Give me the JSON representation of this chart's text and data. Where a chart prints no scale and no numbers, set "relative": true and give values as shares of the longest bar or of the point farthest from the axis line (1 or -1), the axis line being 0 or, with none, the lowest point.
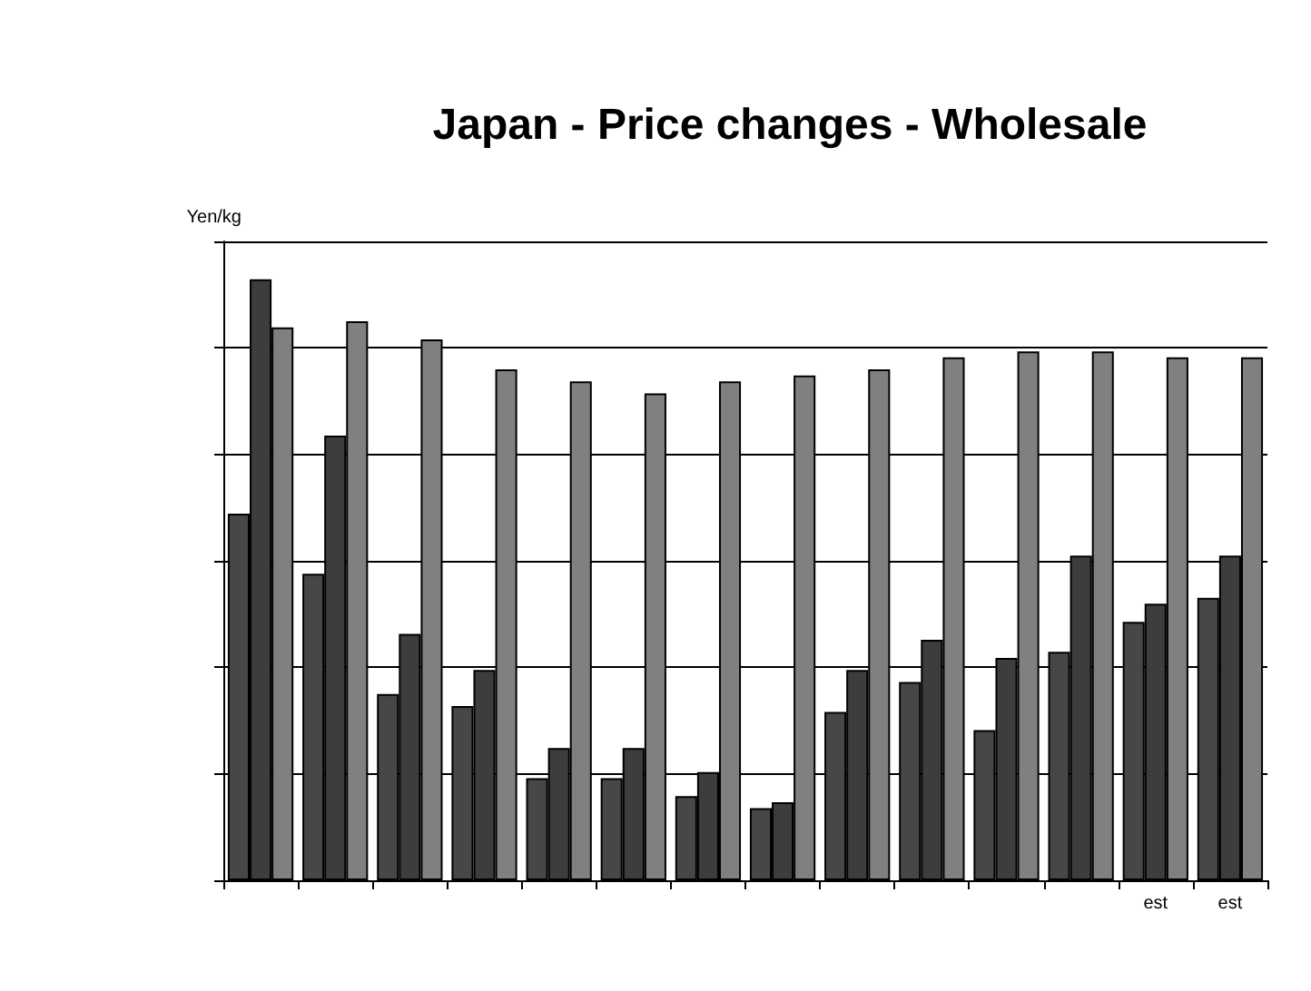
{
  "chart_data": {
    "type": "bar",
    "title": "Japan - Price changes - Wholesale",
    "ylabel": "Yen/kg",
    "relative": true,
    "grid": "y",
    "categories": [
      null,
      null,
      null,
      null,
      null,
      null,
      null,
      null,
      null,
      null,
      null,
      null,
      "est",
      "est"
    ],
    "series": [
      {
        "color": "#474747",
        "values": [
          0.61,
          0.51,
          0.31,
          0.29,
          0.17,
          0.17,
          0.14,
          0.12,
          0.28,
          0.33,
          0.25,
          0.38,
          0.43,
          0.47
        ]
      },
      {
        "color": "#3d3d3d",
        "values": [
          1,
          0.74,
          0.41,
          0.35,
          0.22,
          0.22,
          0.18,
          0.13,
          0.35,
          0.4,
          0.37,
          0.54,
          0.46,
          0.54
        ]
      },
      {
        "color": "#808080",
        "values": [
          0.92,
          0.93,
          0.9,
          0.85,
          0.83,
          0.81,
          0.83,
          0.84,
          0.85,
          0.87,
          0.88,
          0.88,
          0.87,
          0.87
        ]
      }
    ]
  }
}
